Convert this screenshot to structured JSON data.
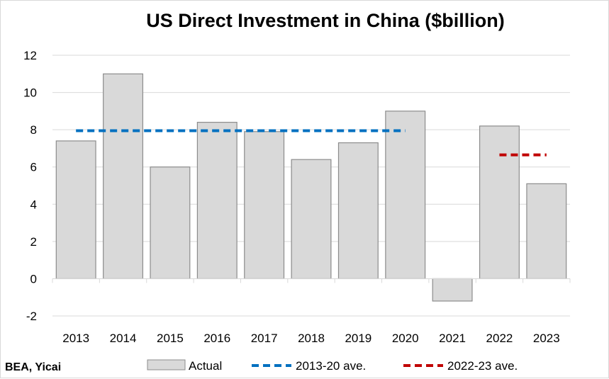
{
  "chart_data": {
    "type": "bar",
    "title": "US Direct Investment in China ($billion)",
    "categories": [
      "2013",
      "2014",
      "2015",
      "2016",
      "2017",
      "2018",
      "2019",
      "2020",
      "2021",
      "2022",
      "2023"
    ],
    "series": [
      {
        "name": "Actual",
        "type": "bar",
        "color": "#d9d9d9",
        "values": [
          7.4,
          11.0,
          6.0,
          8.4,
          7.9,
          6.4,
          7.3,
          9.0,
          -1.2,
          8.2,
          5.1
        ]
      },
      {
        "name": "2013-20 ave.",
        "type": "line",
        "style": "dashed",
        "color": "#0070c0",
        "value": 7.95,
        "categories": [
          "2013",
          "2020"
        ]
      },
      {
        "name": "2022-23 ave.",
        "type": "line",
        "style": "dashed",
        "color": "#c00000",
        "value": 6.65,
        "categories": [
          "2022",
          "2023"
        ]
      }
    ],
    "ylim": [
      -2,
      12
    ],
    "yticks": [
      "-2",
      "0",
      "2",
      "4",
      "6",
      "8",
      "10",
      "12"
    ],
    "grid": true,
    "legend_position": "bottom"
  },
  "source": "BEA, Yicai"
}
